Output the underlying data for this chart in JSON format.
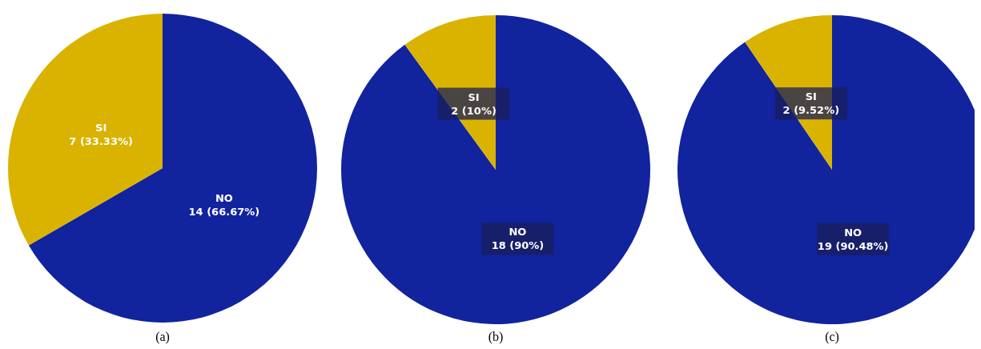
{
  "chart_data": [
    {
      "type": "pie",
      "title": "(a)",
      "categories": [
        "NO",
        "SI"
      ],
      "values": [
        14,
        7
      ],
      "colors": [
        "#12239e",
        "#d9b300"
      ],
      "value_labels": [
        "14 (66.67%)",
        "7 (33.33%)"
      ]
    },
    {
      "type": "pie",
      "title": "(b)",
      "categories": [
        "NO",
        "SI"
      ],
      "values": [
        18,
        2
      ],
      "colors": [
        "#12239e",
        "#d9b300"
      ],
      "value_labels": [
        "18 (90%)",
        "2 (10%)"
      ]
    },
    {
      "type": "pie",
      "title": "(c)",
      "categories": [
        "NO",
        "SI"
      ],
      "values": [
        19,
        2
      ],
      "colors": [
        "#12239e",
        "#d9b300"
      ],
      "value_labels": [
        "19 (90.48%)",
        "2 (9.52%)"
      ]
    }
  ]
}
